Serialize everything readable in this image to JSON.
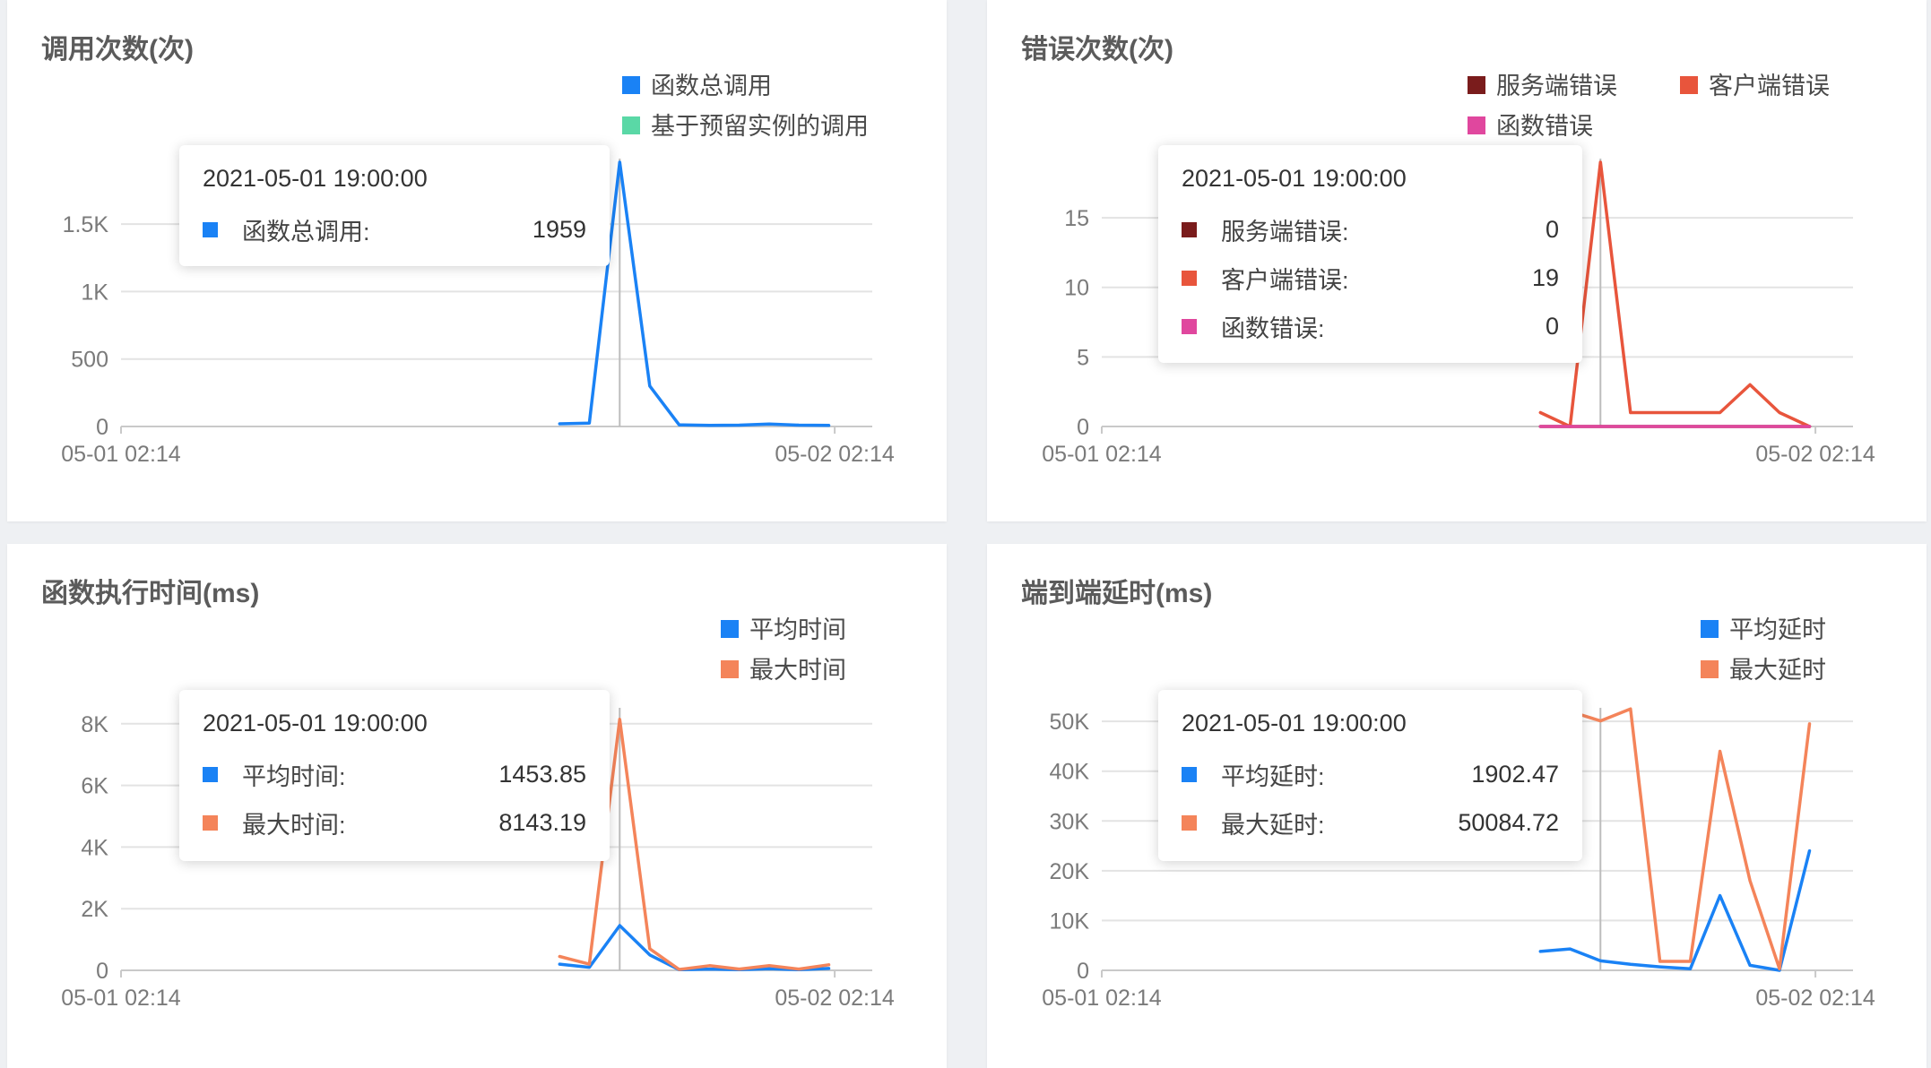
{
  "chart_data": [
    {
      "type": "line",
      "title": "调用次数(次)",
      "x_labels": [
        "05-01 02:14",
        "05-02 02:14"
      ],
      "y_ticks": [
        {
          "value": 0,
          "label": "0"
        },
        {
          "value": 500,
          "label": "500"
        },
        {
          "value": 1000,
          "label": "1K"
        },
        {
          "value": 1500,
          "label": "1.5K"
        }
      ],
      "ylim": [
        0,
        1959
      ],
      "x_range": [
        0,
        24
      ],
      "crosshair_x": 16.77,
      "series": [
        {
          "name": "函数总调用",
          "color": "#1a82f5",
          "x": [
            14.75,
            15.75,
            16.77,
            17.78,
            18.77,
            19.79,
            20.79,
            21.8,
            22.79,
            23.8
          ],
          "values": [
            20,
            25,
            1959,
            300,
            12,
            8,
            10,
            18,
            10,
            8
          ]
        },
        {
          "name": "基于预留实例的调用",
          "color": "#5ad8a6",
          "x": [],
          "values": []
        }
      ],
      "tooltip": {
        "title": "2021-05-01 19:00:00",
        "rows": [
          {
            "label": "函数总调用:",
            "value": "1959",
            "color": "#1a82f5"
          }
        ]
      }
    },
    {
      "type": "line",
      "title": "错误次数(次)",
      "x_labels": [
        "05-01 02:14",
        "05-02 02:14"
      ],
      "y_ticks": [
        {
          "value": 0,
          "label": "0"
        },
        {
          "value": 5,
          "label": "5"
        },
        {
          "value": 10,
          "label": "10"
        },
        {
          "value": 15,
          "label": "15"
        }
      ],
      "ylim": [
        0,
        19
      ],
      "x_range": [
        0,
        24
      ],
      "crosshair_x": 16.77,
      "series": [
        {
          "name": "服务端错误",
          "color": "#7a1c1c",
          "x": [
            14.75,
            15.75,
            16.77,
            17.78,
            18.77,
            19.79,
            20.79,
            21.8,
            22.79,
            23.8
          ],
          "values": [
            0,
            0,
            0,
            0,
            0,
            0,
            0,
            0,
            0,
            0
          ]
        },
        {
          "name": "客户端错误",
          "color": "#e8553c",
          "x": [
            14.75,
            15.75,
            16.77,
            17.78,
            18.77,
            19.79,
            20.79,
            21.8,
            22.79,
            23.8
          ],
          "values": [
            1,
            0,
            19,
            1,
            1,
            1,
            1,
            3,
            1,
            0
          ]
        },
        {
          "name": "函数错误",
          "color": "#e0479e",
          "x": [
            14.75,
            15.75,
            16.77,
            17.78,
            18.77,
            19.79,
            20.79,
            21.8,
            22.79,
            23.8
          ],
          "values": [
            0,
            0,
            0,
            0,
            0,
            0,
            0,
            0,
            0,
            0
          ]
        }
      ],
      "tooltip": {
        "title": "2021-05-01 19:00:00",
        "rows": [
          {
            "label": "服务端错误:",
            "value": "0",
            "color": "#7a1c1c"
          },
          {
            "label": "客户端错误:",
            "value": "19",
            "color": "#e8553c"
          },
          {
            "label": "函数错误:",
            "value": "0",
            "color": "#e0479e"
          }
        ]
      }
    },
    {
      "type": "line",
      "title": "函数执行时间(ms)",
      "x_labels": [
        "05-01 02:14",
        "05-02 02:14"
      ],
      "y_ticks": [
        {
          "value": 0,
          "label": "0"
        },
        {
          "value": 2000,
          "label": "2K"
        },
        {
          "value": 4000,
          "label": "4K"
        },
        {
          "value": 6000,
          "label": "6K"
        },
        {
          "value": 8000,
          "label": "8K"
        }
      ],
      "ylim": [
        0,
        8400
      ],
      "x_range": [
        0,
        24
      ],
      "crosshair_x": 16.77,
      "series": [
        {
          "name": "平均时间",
          "color": "#1a82f5",
          "x": [
            14.75,
            15.75,
            16.77,
            17.78,
            18.77,
            19.79,
            20.79,
            21.8,
            22.79,
            23.8
          ],
          "values": [
            200,
            100,
            1453.85,
            500,
            20,
            40,
            20,
            50,
            20,
            60
          ]
        },
        {
          "name": "最大时间",
          "color": "#f4845a",
          "x": [
            14.75,
            15.75,
            16.77,
            17.78,
            18.77,
            19.79,
            20.79,
            21.8,
            22.79,
            23.8
          ],
          "values": [
            450,
            200,
            8143.19,
            700,
            30,
            150,
            40,
            150,
            40,
            180
          ]
        }
      ],
      "tooltip": {
        "title": "2021-05-01 19:00:00",
        "rows": [
          {
            "label": "平均时间:",
            "value": "1453.85",
            "color": "#1a82f5"
          },
          {
            "label": "最大时间:",
            "value": "8143.19",
            "color": "#f4845a"
          }
        ]
      }
    },
    {
      "type": "line",
      "title": "端到端延时(ms)",
      "x_labels": [
        "05-01 02:14",
        "05-02 02:14"
      ],
      "y_ticks": [
        {
          "value": 0,
          "label": "0"
        },
        {
          "value": 10000,
          "label": "10K"
        },
        {
          "value": 20000,
          "label": "20K"
        },
        {
          "value": 30000,
          "label": "30K"
        },
        {
          "value": 40000,
          "label": "40K"
        },
        {
          "value": 50000,
          "label": "50K"
        }
      ],
      "ylim": [
        0,
        52000
      ],
      "x_range": [
        0,
        24
      ],
      "crosshair_x": 16.77,
      "series": [
        {
          "name": "平均延时",
          "color": "#1a82f5",
          "x": [
            14.75,
            15.75,
            16.77,
            17.78,
            18.77,
            19.79,
            20.79,
            21.8,
            22.79,
            23.8
          ],
          "values": [
            3800,
            4300,
            1902.47,
            1200,
            700,
            300,
            15000,
            1000,
            0,
            24000
          ]
        },
        {
          "name": "最大延时",
          "color": "#f4845a",
          "x": [
            14.75,
            15.75,
            16.77,
            17.78,
            18.77,
            19.79,
            20.79,
            21.8,
            22.79,
            23.8
          ],
          "values": [
            51000,
            52000,
            50084.72,
            52500,
            1800,
            1800,
            44000,
            18000,
            300,
            49500
          ]
        }
      ],
      "tooltip": {
        "title": "2021-05-01 19:00:00",
        "rows": [
          {
            "label": "平均延时:",
            "value": "1902.47",
            "color": "#1a82f5"
          },
          {
            "label": "最大延时:",
            "value": "50084.72",
            "color": "#f4845a"
          }
        ]
      }
    }
  ]
}
